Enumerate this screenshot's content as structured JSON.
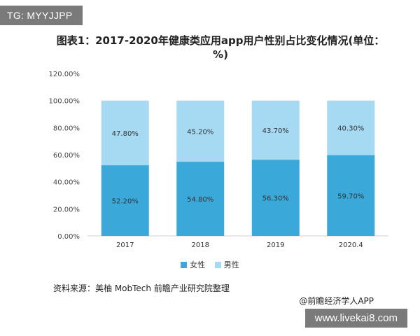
{
  "overlay": {
    "tag_label": "TG: MYYJJPP",
    "site_label": "www.livekai8.com"
  },
  "figure": {
    "source": "资料来源：美柚 MobTech 前瞻产业研究院整理",
    "credit": "@前瞻经济学人APP"
  },
  "chart_data": {
    "type": "bar",
    "stacked": true,
    "title": "图表1：2017-2020年健康类应用app用户性别占比变化情况(单位：%)",
    "categories": [
      "2017",
      "2018",
      "2019",
      "2020.4"
    ],
    "series": [
      {
        "name": "女性",
        "values": [
          52.2,
          54.8,
          56.3,
          59.7
        ],
        "color": "#3aa9da"
      },
      {
        "name": "男性",
        "values": [
          47.8,
          45.2,
          43.7,
          40.3
        ],
        "color": "#a6daf3"
      }
    ],
    "ylim": [
      0,
      120
    ],
    "yticks": [
      "0.00%",
      "20.00%",
      "40.00%",
      "60.00%",
      "80.00%",
      "100.00%",
      "120.00%"
    ],
    "ytick_values": [
      0,
      20,
      40,
      60,
      80,
      100,
      120
    ],
    "xlabel": "",
    "ylabel": "",
    "grid": false,
    "legend": "bottom"
  }
}
